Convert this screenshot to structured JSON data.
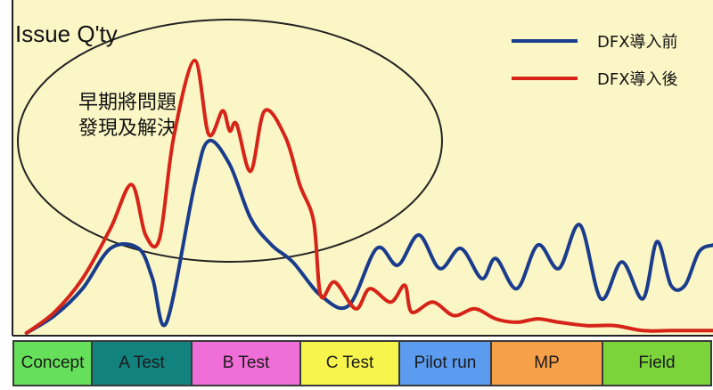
{
  "chart_data": {
    "type": "line",
    "ylabel": "Issue Q'ty",
    "annotation": [
      "早期將問題",
      "發現及解決"
    ],
    "grid": false,
    "legend": "top-right",
    "x_domain": [
      0,
      100
    ],
    "y_domain": [
      0,
      100
    ],
    "series": [
      {
        "name": "DFX導入前",
        "color": "#1a3c8c",
        "x": [
          2,
          6,
          10,
          14,
          18,
          20,
          22,
          26,
          28,
          31,
          34,
          37,
          40,
          44,
          48,
          52,
          55,
          58,
          61,
          64,
          67,
          69,
          72,
          75,
          78,
          81,
          84,
          87,
          90,
          92,
          94,
          96,
          98,
          100
        ],
        "y": [
          0.8,
          6,
          14,
          26,
          26,
          17,
          4,
          45,
          58,
          51,
          35,
          27,
          22,
          12,
          9,
          26,
          21,
          30,
          20,
          26,
          17,
          23,
          14,
          27,
          20,
          33,
          11,
          22,
          11,
          28,
          15,
          15,
          25,
          27
        ]
      },
      {
        "name": "DFX導入後",
        "color": "#d62418",
        "x": [
          2,
          6,
          10,
          14,
          17,
          19,
          21,
          23,
          26,
          28,
          30,
          31,
          32,
          34,
          36,
          39,
          41,
          43,
          44,
          46,
          49,
          51,
          54,
          56,
          57,
          60,
          63,
          66,
          69,
          72,
          75,
          78,
          82,
          86,
          90,
          94,
          98,
          100
        ],
        "y": [
          0.8,
          7,
          17,
          32,
          45,
          30,
          29,
          59,
          82,
          60,
          67,
          61,
          63,
          49,
          67,
          59,
          45,
          34,
          12,
          16,
          8,
          14,
          10,
          15,
          7,
          10,
          6,
          8,
          5,
          4,
          5,
          4,
          3,
          3,
          1.5,
          1.5,
          1.5,
          1.5
        ]
      }
    ],
    "phases": [
      {
        "label": "Concept",
        "color": "#66e05a"
      },
      {
        "label": "A Test",
        "color": "#12827f"
      },
      {
        "label": "B Test",
        "color": "#f06ed7"
      },
      {
        "label": "C Test",
        "color": "#f7f54c"
      },
      {
        "label": "Pilot run",
        "color": "#5c9cf0"
      },
      {
        "label": "MP",
        "color": "#f7a04a"
      },
      {
        "label": "Field",
        "color": "#7ad43a"
      }
    ],
    "background_color": "#fbf6c6"
  }
}
